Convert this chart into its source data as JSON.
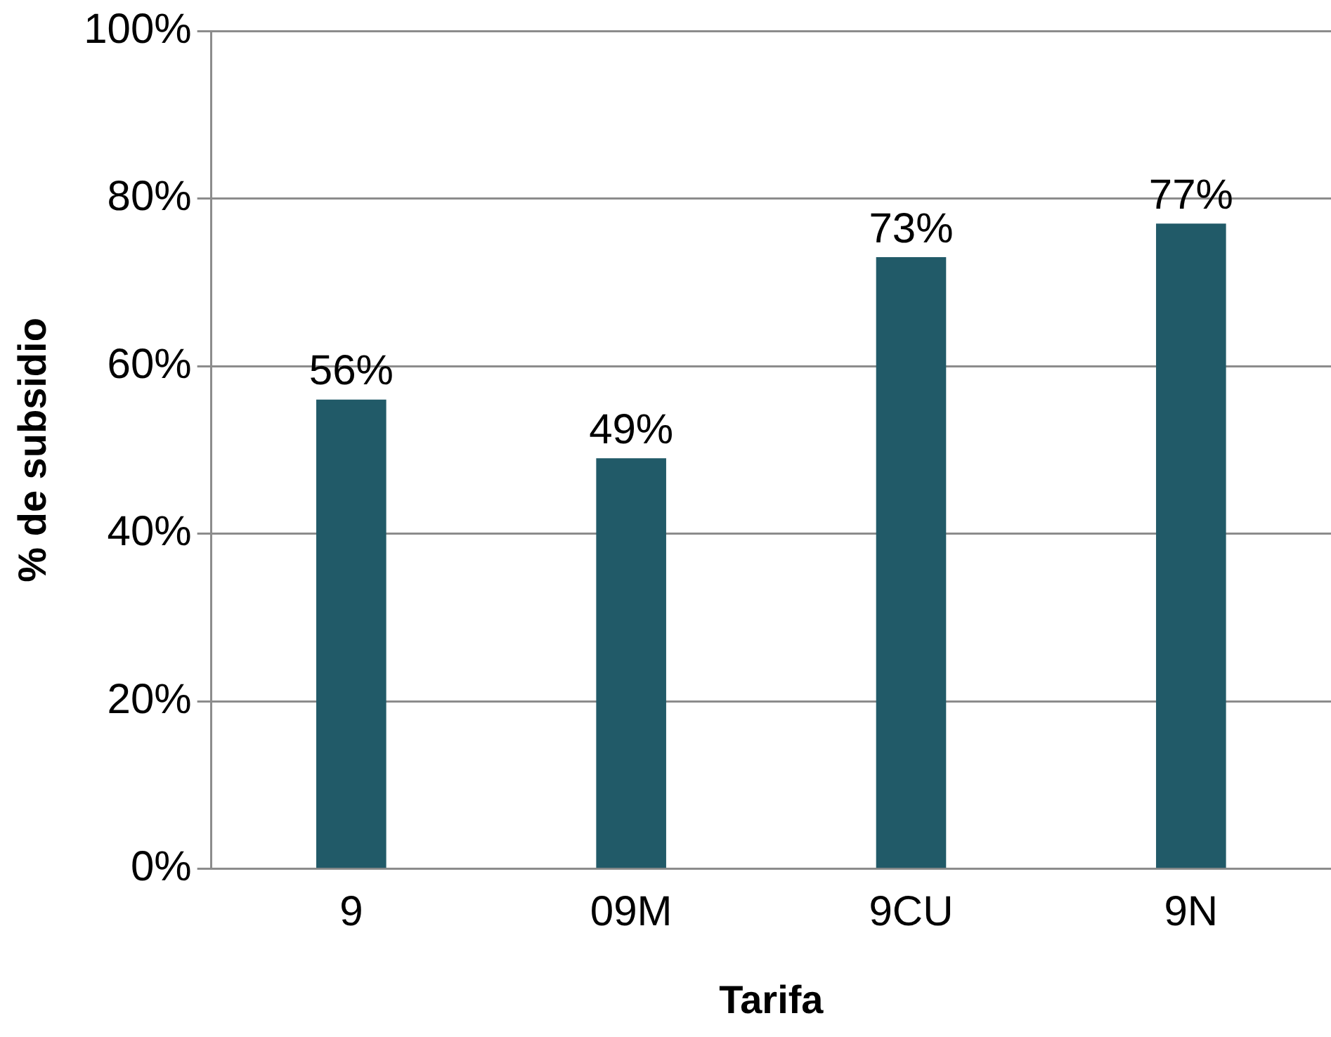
{
  "chart_data": {
    "type": "bar",
    "xlabel": "Tarifa",
    "ylabel": "% de subsidio",
    "categories": [
      "9",
      "09M",
      "9CU",
      "9N"
    ],
    "values": [
      56,
      49,
      73,
      77
    ],
    "value_labels": [
      "56%",
      "49%",
      "73%",
      "77%"
    ],
    "color": "#215a68",
    "ylim": [
      0,
      100
    ],
    "yticks": [
      {
        "value": 0,
        "label": "0%"
      },
      {
        "value": 20,
        "label": "20%"
      },
      {
        "value": 40,
        "label": "40%"
      },
      {
        "value": 60,
        "label": "60%"
      },
      {
        "value": 80,
        "label": "80%"
      },
      {
        "value": 100,
        "label": "100%"
      }
    ],
    "grid": "y",
    "legend": false
  }
}
